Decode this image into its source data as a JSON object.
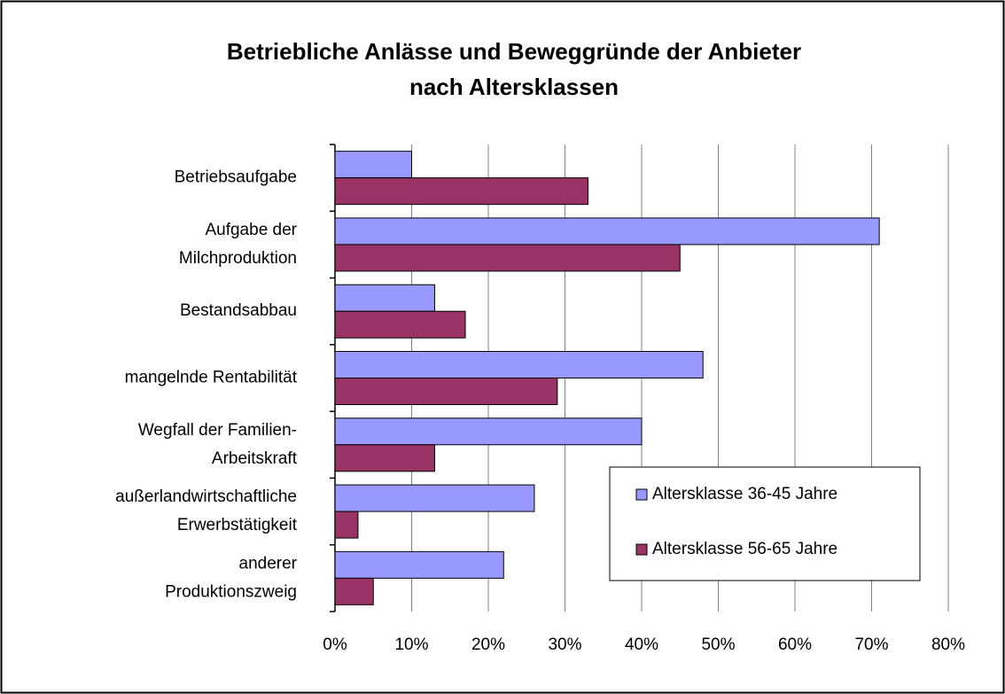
{
  "chart_data": {
    "type": "bar",
    "orientation": "horizontal",
    "title": [
      "Betriebliche Anlässe und Beweggründe der Anbieter",
      "nach Altersklassen"
    ],
    "categories": [
      [
        "Betriebsaufgabe"
      ],
      [
        "Aufgabe der",
        "Milchproduktion"
      ],
      [
        "Bestandsabbau"
      ],
      [
        "mangelnde Rentabilität"
      ],
      [
        "Wegfall der Familien-",
        "Arbeitskraft"
      ],
      [
        "außerlandwirtschaftliche",
        "Erwerbstätigkeit"
      ],
      [
        "anderer",
        "Produktionszweig"
      ]
    ],
    "series": [
      {
        "name": "Altersklasse 36-45 Jahre",
        "color": "#9999ff",
        "values": [
          10,
          71,
          13,
          48,
          40,
          26,
          22
        ]
      },
      {
        "name": "Altersklasse 56-65 Jahre",
        "color": "#993366",
        "values": [
          33,
          45,
          17,
          29,
          13,
          3,
          5
        ]
      }
    ],
    "xlim": [
      0,
      80
    ],
    "xticks": [
      {
        "value": 0,
        "label": "0%"
      },
      {
        "value": 10,
        "label": "10%"
      },
      {
        "value": 20,
        "label": "20%"
      },
      {
        "value": 30,
        "label": "30%"
      },
      {
        "value": 40,
        "label": "40%"
      },
      {
        "value": 50,
        "label": "50%"
      },
      {
        "value": 60,
        "label": "60%"
      },
      {
        "value": 70,
        "label": "70%"
      },
      {
        "value": 80,
        "label": "80%"
      }
    ],
    "grid": true,
    "legend": "lower right"
  }
}
